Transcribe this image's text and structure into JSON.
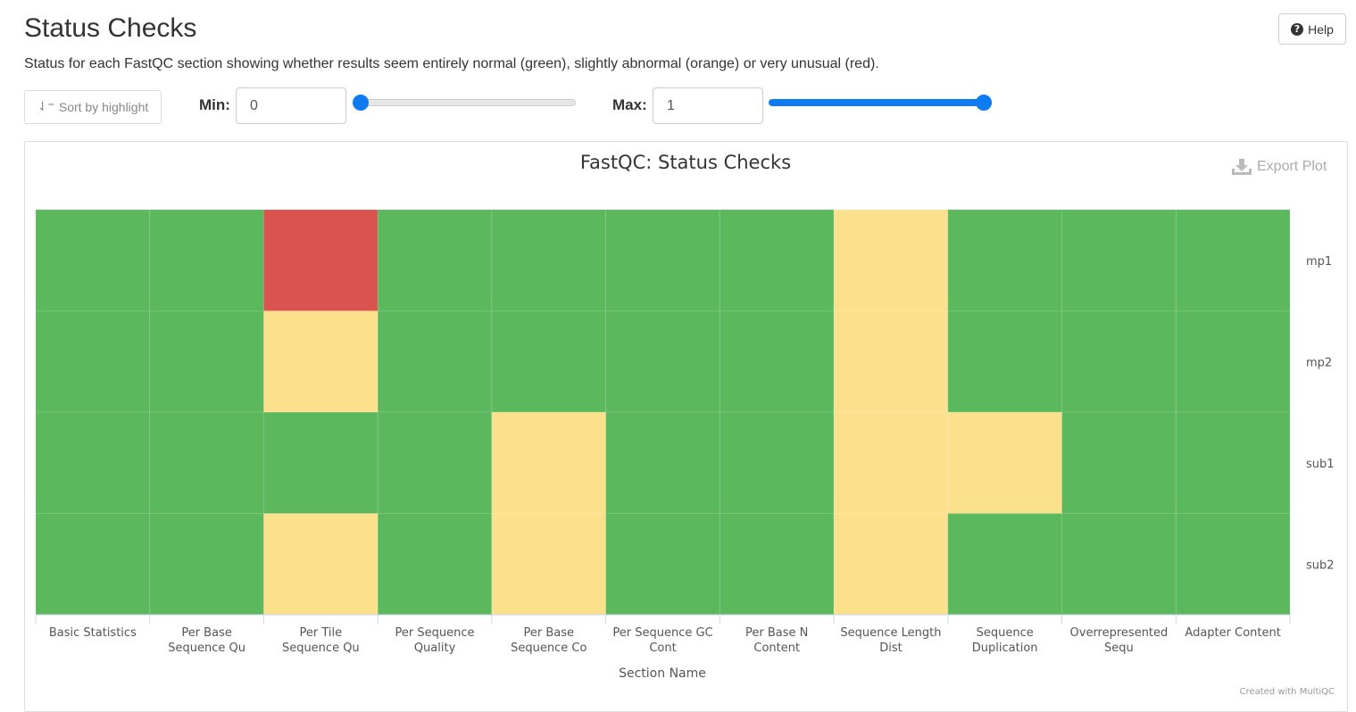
{
  "header": {
    "title": "Status Checks",
    "description": "Status for each FastQC section showing whether results seem entirely normal (green), slightly abnormal (orange) or very unusual (red).",
    "help_label": "Help"
  },
  "toolbar": {
    "sort_label": "Sort by highlight",
    "min_label": "Min:",
    "min_value": "0",
    "max_label": "Max:",
    "max_value": "1",
    "min_slider_level": 0,
    "max_slider_level": 1
  },
  "plot": {
    "export_label": "Export Plot",
    "credit": "Created with MultiQC"
  },
  "colors": {
    "pass": "#5cb85c",
    "warn": "#fce18d",
    "fail": "#d9534f",
    "accent": "#0e7bf2"
  },
  "chart_data": {
    "type": "heatmap",
    "title": "FastQC: Status Checks",
    "xlabel": "Section Name",
    "ylabel": "",
    "columns": [
      [
        "Basic Statistics"
      ],
      [
        "Per Base",
        "Sequence Qu"
      ],
      [
        "Per Tile",
        "Sequence Qu"
      ],
      [
        "Per Sequence",
        "Quality"
      ],
      [
        "Per Base",
        "Sequence Co"
      ],
      [
        "Per Sequence GC",
        "Cont"
      ],
      [
        "Per Base N",
        "Content"
      ],
      [
        "Sequence Length",
        "Dist"
      ],
      [
        "Sequence",
        "Duplication"
      ],
      [
        "Overrepresented",
        "Sequ"
      ],
      [
        "Adapter Content"
      ]
    ],
    "rows": [
      "mp1",
      "mp2",
      "sub1",
      "sub2"
    ],
    "values": [
      [
        1,
        1,
        0,
        1,
        1,
        1,
        1,
        0.5,
        1,
        1,
        1
      ],
      [
        1,
        1,
        0.5,
        1,
        1,
        1,
        1,
        0.5,
        1,
        1,
        1
      ],
      [
        1,
        1,
        1,
        1,
        0.5,
        1,
        1,
        0.5,
        0.5,
        1,
        1
      ],
      [
        1,
        1,
        0.5,
        1,
        0.5,
        1,
        1,
        0.5,
        1,
        1,
        1
      ]
    ],
    "value_legend": {
      "1": "pass",
      "0.5": "warn",
      "0": "fail"
    },
    "range": [
      0,
      1
    ]
  }
}
